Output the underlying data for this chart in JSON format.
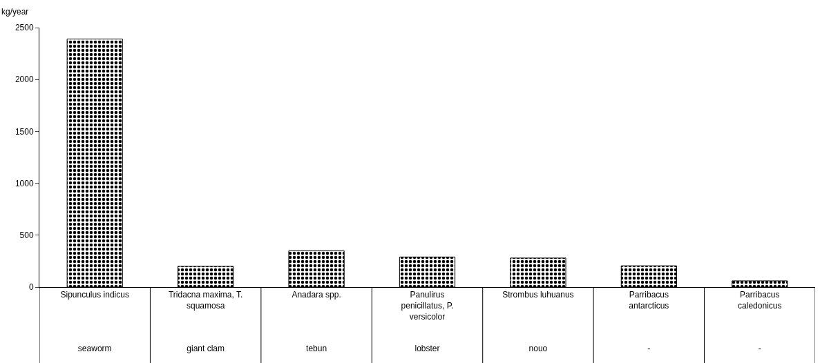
{
  "chart_data": {
    "type": "bar",
    "ylabel": "kg/year",
    "categories": [
      "Sipunculus indicus\nseaworm",
      "Tridacna maxima, T. squamosa\ngiant clam",
      "Anadara spp.\ntebun",
      "Panulirus penicillatus, P. versicolor\nlobster",
      "Strombus luhuanus\nnouo",
      "Parribacus antarcticus\n-",
      "Parribacus caledonicus\n-"
    ],
    "values": [
      2390,
      200,
      350,
      290,
      280,
      205,
      60
    ],
    "color": "#000000",
    "ylim": [
      0,
      2500
    ],
    "yticks": [
      0,
      500,
      1000,
      1500,
      2000,
      2500
    ],
    "grid": false
  }
}
